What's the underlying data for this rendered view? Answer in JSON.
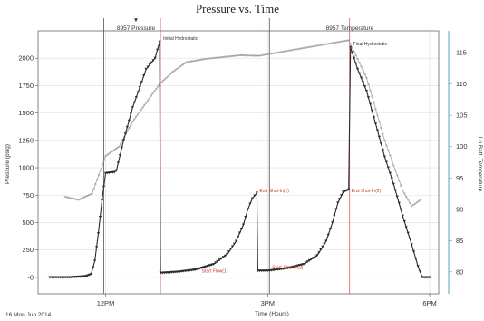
{
  "colors": {
    "pressure": "#2a2a2a",
    "temperature": "#9a9a9a",
    "event_line": "#e06060",
    "pressure_axis": "#333333",
    "temperature_axis": "#5aa0c8",
    "grid": "#dddddd"
  },
  "chart_data": {
    "type": "line",
    "title": "Pressure vs. Time",
    "xlabel": "Time (Hours)",
    "ylabel": "Pressure (psig)",
    "y2label": "Lo Batt. Temperature",
    "footer_date": "16 Mon Jun 2014",
    "x_axis": {
      "range": [
        "10:45",
        "18:10"
      ],
      "ticks": [
        {
          "t": "12:00",
          "label": "12PM"
        },
        {
          "t": "15:00",
          "label": "3PM"
        },
        {
          "t": "18:00",
          "label": "6PM"
        }
      ]
    },
    "ylim": [
      -150,
      2250
    ],
    "yticks": [
      0,
      250,
      500,
      750,
      1000,
      1250,
      1500,
      1750,
      2000
    ],
    "ytick_labels": [
      "-0",
      "250",
      "500",
      "750",
      "1000",
      "1250",
      "1500",
      "1750",
      "2000"
    ],
    "y2lim": [
      76.5,
      118.5
    ],
    "y2ticks": [
      80,
      85,
      90,
      95,
      100,
      105,
      110,
      115
    ],
    "grid": true,
    "series": [
      {
        "name": "8957 Pressure",
        "axis": "left",
        "points": [
          [
            "10:58",
            0
          ],
          [
            "11:10",
            0
          ],
          [
            "11:20",
            0
          ],
          [
            "11:30",
            5
          ],
          [
            "11:38",
            10
          ],
          [
            "11:44",
            30
          ],
          [
            "11:48",
            150
          ],
          [
            "11:52",
            400
          ],
          [
            "11:56",
            700
          ],
          [
            "12:00",
            950
          ],
          [
            "12:10",
            960
          ],
          [
            "12:12",
            975
          ],
          [
            "12:20",
            1250
          ],
          [
            "12:30",
            1550
          ],
          [
            "12:40",
            1780
          ],
          [
            "12:45",
            1900
          ],
          [
            "12:55",
            2000
          ],
          [
            "13:00",
            2150
          ],
          [
            "13:01",
            40
          ],
          [
            "13:20",
            50
          ],
          [
            "13:40",
            70
          ],
          [
            "14:00",
            120
          ],
          [
            "14:15",
            210
          ],
          [
            "14:25",
            330
          ],
          [
            "14:33",
            480
          ],
          [
            "14:38",
            620
          ],
          [
            "14:43",
            720
          ],
          [
            "14:48",
            770
          ],
          [
            "14:49",
            60
          ],
          [
            "15:00",
            60
          ],
          [
            "15:20",
            80
          ],
          [
            "15:40",
            120
          ],
          [
            "15:55",
            200
          ],
          [
            "16:05",
            330
          ],
          [
            "16:12",
            500
          ],
          [
            "16:18",
            680
          ],
          [
            "16:24",
            780
          ],
          [
            "16:30",
            800
          ],
          [
            "16:32",
            2100
          ],
          [
            "16:40",
            1900
          ],
          [
            "16:50",
            1700
          ],
          [
            "17:00",
            1400
          ],
          [
            "17:10",
            1100
          ],
          [
            "17:20",
            850
          ],
          [
            "17:30",
            560
          ],
          [
            "17:40",
            300
          ],
          [
            "17:47",
            100
          ],
          [
            "17:52",
            0
          ],
          [
            "18:00",
            0
          ]
        ]
      },
      {
        "name": "8957 Temperature",
        "axis": "right",
        "points": [
          [
            "11:15",
            92.0
          ],
          [
            "11:30",
            91.5
          ],
          [
            "11:45",
            92.5
          ],
          [
            "12:00",
            98.5
          ],
          [
            "12:15",
            100.0
          ],
          [
            "12:30",
            104.0
          ],
          [
            "12:45",
            107.0
          ],
          [
            "13:00",
            110.0
          ],
          [
            "13:15",
            112.0
          ],
          [
            "13:30",
            113.5
          ],
          [
            "13:50",
            114.0
          ],
          [
            "14:10",
            114.3
          ],
          [
            "14:30",
            114.6
          ],
          [
            "14:50",
            114.5
          ],
          [
            "15:10",
            115.0
          ],
          [
            "15:30",
            115.5
          ],
          [
            "15:50",
            116.0
          ],
          [
            "16:10",
            116.5
          ],
          [
            "16:30",
            117.0
          ],
          [
            "16:40",
            114.0
          ],
          [
            "16:50",
            111.0
          ],
          [
            "17:00",
            106.0
          ],
          [
            "17:10",
            101.0
          ],
          [
            "17:20",
            97.0
          ],
          [
            "17:30",
            93.0
          ],
          [
            "17:40",
            90.5
          ],
          [
            "17:50",
            91.5
          ]
        ]
      }
    ],
    "event_lines": [
      {
        "t": "11:58",
        "style": "solid",
        "color": "#555555"
      },
      {
        "t": "13:01",
        "style": "solid",
        "color": "#e06060"
      },
      {
        "t": "14:48",
        "style": "dashed",
        "color": "#e06060"
      },
      {
        "t": "15:02",
        "style": "solid",
        "color": "#555555"
      },
      {
        "t": "16:31",
        "style": "solid",
        "color": "#e06060"
      }
    ],
    "annotations": [
      {
        "text": "Initial Hydrostatic",
        "t": "13:02",
        "v": 2150,
        "kind": "black"
      },
      {
        "text": "Final Hydrostatic",
        "t": "16:33",
        "v": 2100,
        "kind": "black"
      },
      {
        "text": "End Shut-In(1)",
        "t": "14:49",
        "v": 760,
        "kind": "red"
      },
      {
        "text": "Start Shut-In(2)",
        "t": "15:03",
        "v": 60,
        "kind": "red"
      },
      {
        "text": "End Shut-In(2)",
        "t": "16:31",
        "v": 760,
        "kind": "red"
      },
      {
        "text": "Start Flow(1)",
        "t": "13:45",
        "v": 30,
        "kind": "red"
      }
    ],
    "legend": {
      "marker": "▼",
      "pressure_label": "8957 Pressure",
      "temperature_label": "8957 Temperature"
    }
  }
}
